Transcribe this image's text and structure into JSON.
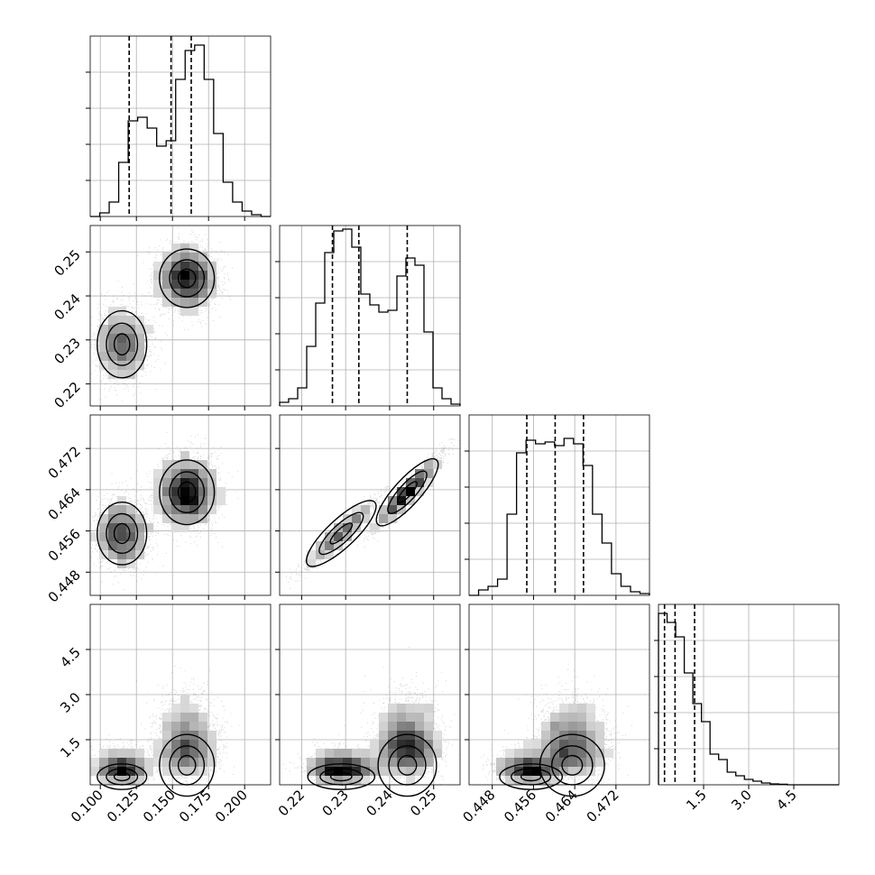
{
  "chart_data": {
    "type": "corner",
    "title": "",
    "grid": true,
    "parameters": [
      {
        "range": [
          0.093,
          0.218
        ],
        "ticks": [
          0.1,
          0.125,
          0.15,
          0.175,
          0.2
        ],
        "tick_labels": [
          "0.100",
          "0.125",
          "0.150",
          "0.175",
          "0.200"
        ],
        "quantiles": [
          0.12,
          0.149,
          0.163
        ],
        "modes": [
          {
            "center": 0.115,
            "width": 0.009,
            "weight": 0.38
          },
          {
            "center": 0.16,
            "width": 0.01,
            "weight": 0.62
          }
        ],
        "histogram": [
          0.0,
          0.02,
          0.08,
          0.3,
          0.53,
          0.55,
          0.49,
          0.39,
          0.42,
          0.76,
          0.92,
          0.95,
          0.76,
          0.46,
          0.19,
          0.08,
          0.03,
          0.01,
          0.0
        ]
      },
      {
        "range": [
          0.215,
          0.256
        ],
        "ticks": [
          0.22,
          0.23,
          0.24,
          0.25
        ],
        "tick_labels": [
          "0.22",
          "0.23",
          "0.24",
          "0.25"
        ],
        "quantiles": [
          0.227,
          0.233,
          0.244
        ],
        "modes": [
          {
            "center": 0.229,
            "width": 0.004,
            "weight": 0.38
          },
          {
            "center": 0.244,
            "width": 0.0035,
            "weight": 0.62
          }
        ],
        "histogram": [
          0.02,
          0.04,
          0.1,
          0.33,
          0.57,
          0.85,
          0.97,
          0.98,
          0.88,
          0.62,
          0.56,
          0.52,
          0.53,
          0.72,
          0.82,
          0.78,
          0.41,
          0.1,
          0.04,
          0.01
        ]
      },
      {
        "range": [
          0.4435,
          0.4785
        ],
        "ticks": [
          0.448,
          0.456,
          0.464,
          0.472
        ],
        "tick_labels": [
          "0.448",
          "0.456",
          "0.464",
          "0.472"
        ],
        "quantiles": [
          0.4547,
          0.4602,
          0.4657
        ],
        "modes": [
          {
            "center": 0.4555,
            "width": 0.0032,
            "weight": 0.38
          },
          {
            "center": 0.4635,
            "width": 0.0033,
            "weight": 0.62
          }
        ],
        "histogram": [
          0.0,
          0.03,
          0.05,
          0.09,
          0.45,
          0.79,
          0.86,
          0.84,
          0.85,
          0.83,
          0.87,
          0.84,
          0.72,
          0.45,
          0.29,
          0.12,
          0.05,
          0.02,
          0.01
        ]
      },
      {
        "range": [
          0.0,
          6.0
        ],
        "ticks": [
          1.5,
          3.0,
          4.5
        ],
        "tick_labels": [
          "1.5",
          "3.0",
          "4.5"
        ],
        "quantiles": [
          0.2,
          0.55,
          1.2
        ],
        "modes": [
          {
            "center": 0.3,
            "width": 0.25,
            "weight": 0.38
          },
          {
            "center": 0.75,
            "width": 0.6,
            "weight": 0.62
          }
        ],
        "histogram": [
          0.95,
          0.9,
          0.82,
          0.62,
          0.45,
          0.35,
          0.17,
          0.14,
          0.07,
          0.05,
          0.03,
          0.02,
          0.01,
          0.005,
          0.003,
          0.0,
          0.0,
          0.0,
          0.0,
          0.0,
          0.0
        ]
      }
    ],
    "density_panels": [
      {
        "row": 1,
        "col": 0
      },
      {
        "row": 2,
        "col": 0
      },
      {
        "row": 2,
        "col": 1
      },
      {
        "row": 3,
        "col": 0
      },
      {
        "row": 3,
        "col": 1
      },
      {
        "row": 3,
        "col": 2
      }
    ],
    "colors": {
      "line": "#000000",
      "grid": "#b0b0b0",
      "points": "#000000"
    }
  }
}
